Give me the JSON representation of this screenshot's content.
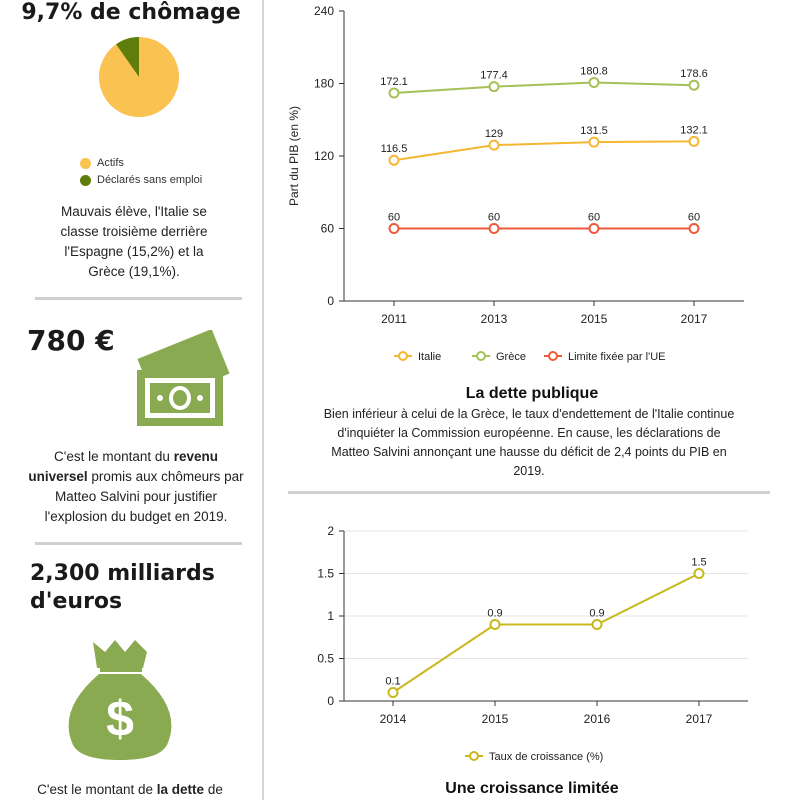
{
  "left": {
    "unemployment": {
      "title": "9,7% de chômage",
      "legend": [
        {
          "label": "Actifs",
          "color": "#f9c251"
        },
        {
          "label": "Déclarés sans emploi",
          "color": "#5e7d0b"
        }
      ],
      "pie": {
        "unemployed_pct": 9.7
      },
      "text": "Mauvais élève, l'Italie se classe troisième derrière l'Espagne (15,2%) et la Grèce (19,1%)."
    },
    "income": {
      "title": "780 €",
      "text_before": "C'est le montant du ",
      "text_bold": "revenu universel",
      "text_after": " promis aux chômeurs par Matteo Salvini pour justifier l'explosion du budget en 2019."
    },
    "debt": {
      "title": "2,300 milliards d'euros",
      "text_before": "C'est le montant de ",
      "text_bold": "la dette",
      "text_after": " de"
    },
    "icon_color": "#8aaa52"
  },
  "chart_data": [
    {
      "type": "line",
      "x": [
        2011,
        2013,
        2015,
        2017
      ],
      "ylabel": "Part du PIB (en %)",
      "ylim": [
        0,
        240
      ],
      "yticks": [
        0,
        60,
        120,
        180,
        240
      ],
      "grid": false,
      "legend_position": "bottom",
      "series": [
        {
          "name": "Italie",
          "values": [
            116.5,
            129,
            131.5,
            132.1
          ],
          "labels": [
            "116.5",
            "129",
            "131.5",
            "132.1"
          ],
          "color": "#f5b731"
        },
        {
          "name": "Grèce",
          "values": [
            172.1,
            177.4,
            180.8,
            178.6
          ],
          "labels": [
            "172.1",
            "177.4",
            "180.8",
            "178.6"
          ],
          "color": "#a5c157"
        },
        {
          "name": "Limite fixée par l'UE",
          "values": [
            60,
            60,
            60,
            60
          ],
          "labels": [
            "60",
            "60",
            "60",
            "60"
          ],
          "color": "#ee5a3c"
        }
      ],
      "title": "La dette publique",
      "description": "Bien inférieur à celui de la Grèce, le taux d'endettement de l'Italie continue d'inquiéter la Commission européenne. En cause, les déclarations de Matteo Salvini annonçant une hausse du déficit de 2,4 points du PIB en 2019."
    },
    {
      "type": "line",
      "x": [
        2014,
        2015,
        2016,
        2017
      ],
      "ylim": [
        0,
        2
      ],
      "yticks": [
        "0",
        "0.5",
        "1",
        "1.5",
        "2"
      ],
      "grid": true,
      "legend_position": "bottom",
      "series": [
        {
          "name": "Taux de croissance (%)",
          "values": [
            0.1,
            0.9,
            0.9,
            1.5
          ],
          "labels": [
            "0.1",
            "0.9",
            "0.9",
            "1.5"
          ],
          "color": "#c9b81d"
        }
      ],
      "title": "Une croissance limitée"
    }
  ]
}
